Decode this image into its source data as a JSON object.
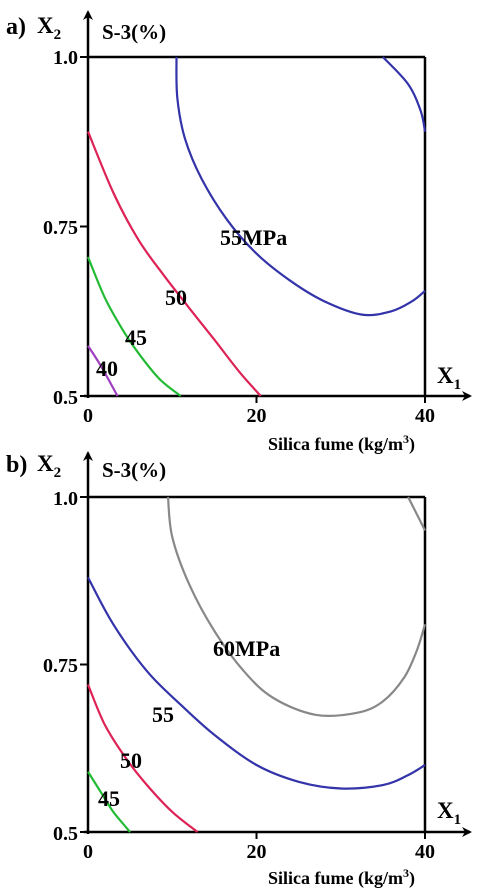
{
  "chart_data": [
    {
      "type": "contour",
      "panel_label": "a)",
      "title": "S-3(%)",
      "y_axis": {
        "name": "X",
        "subscript": "2",
        "ticks": [
          "0.5",
          "0.75",
          "1.0"
        ],
        "range": [
          0.5,
          1.0
        ]
      },
      "x_axis": {
        "name": "X",
        "subscript": "1",
        "ticks": [
          "0",
          "20",
          "40"
        ],
        "range": [
          0,
          40
        ],
        "label": "Silica fume (kg/m",
        "label_sup": "3",
        "label_end": ")"
      },
      "contours": [
        {
          "label": "40",
          "color": "#a040c0",
          "points": [
            [
              0,
              0.574
            ],
            [
              1.5,
              0.545
            ],
            [
              3.5,
              0.5
            ]
          ]
        },
        {
          "label": "45",
          "color": "#22bb33",
          "points": [
            [
              0,
              0.705
            ],
            [
              2,
              0.645
            ],
            [
              4,
              0.6
            ],
            [
              6,
              0.563
            ],
            [
              8.5,
              0.525
            ],
            [
              11,
              0.5
            ]
          ]
        },
        {
          "label": "50",
          "color": "#dd2255",
          "points": [
            [
              0,
              0.89
            ],
            [
              3,
              0.8
            ],
            [
              6,
              0.73
            ],
            [
              9,
              0.678
            ],
            [
              12,
              0.63
            ],
            [
              15,
              0.583
            ],
            [
              18,
              0.535
            ],
            [
              20.5,
              0.5
            ]
          ]
        },
        {
          "label": "55MPa",
          "color": "#3333aa",
          "points": [
            [
              10.5,
              1.0
            ],
            [
              10.6,
              0.94
            ],
            [
              11.5,
              0.88
            ],
            [
              13.5,
              0.82
            ],
            [
              16.5,
              0.76
            ],
            [
              20,
              0.71
            ],
            [
              24,
              0.67
            ],
            [
              28,
              0.64
            ],
            [
              32.5,
              0.62
            ],
            [
              36,
              0.625
            ],
            [
              38.5,
              0.64
            ],
            [
              40,
              0.655
            ]
          ]
        },
        {
          "label": "",
          "color": "#3333aa",
          "points": [
            [
              35,
              1.0
            ],
            [
              38,
              0.96
            ],
            [
              39.5,
              0.92
            ],
            [
              40,
              0.89
            ]
          ]
        }
      ]
    },
    {
      "type": "contour",
      "panel_label": "b)",
      "title": "S-3(%)",
      "y_axis": {
        "name": "X",
        "subscript": "2",
        "ticks": [
          "0.5",
          "0.75",
          "1.0"
        ],
        "range": [
          0.5,
          1.0
        ]
      },
      "x_axis": {
        "name": "X",
        "subscript": "1",
        "ticks": [
          "0",
          "20",
          "40"
        ],
        "range": [
          0,
          40
        ],
        "label": "Silica fume (kg/m",
        "label_sup": "3",
        "label_end": ")"
      },
      "contours": [
        {
          "label": "45",
          "color": "#22bb33",
          "points": [
            [
              0,
              0.59
            ],
            [
              1.5,
              0.56
            ],
            [
              3,
              0.53
            ],
            [
              5,
              0.5
            ]
          ]
        },
        {
          "label": "50",
          "color": "#dd2255",
          "points": [
            [
              0,
              0.72
            ],
            [
              2,
              0.66
            ],
            [
              4.5,
              0.61
            ],
            [
              7,
              0.57
            ],
            [
              10,
              0.53
            ],
            [
              13,
              0.5
            ]
          ]
        },
        {
          "label": "55",
          "color": "#3333aa",
          "points": [
            [
              0,
              0.88
            ],
            [
              3,
              0.81
            ],
            [
              7,
              0.74
            ],
            [
              11,
              0.69
            ],
            [
              15,
              0.645
            ],
            [
              20,
              0.6
            ],
            [
              25,
              0.575
            ],
            [
              30,
              0.565
            ],
            [
              35,
              0.57
            ],
            [
              38,
              0.585
            ],
            [
              40,
              0.6
            ]
          ]
        },
        {
          "label": "60MPa",
          "color": "#888888",
          "points": [
            [
              9.5,
              1.0
            ],
            [
              10,
              0.94
            ],
            [
              12,
              0.87
            ],
            [
              15,
              0.8
            ],
            [
              18.5,
              0.74
            ],
            [
              22,
              0.7
            ],
            [
              27,
              0.675
            ],
            [
              32,
              0.678
            ],
            [
              35,
              0.695
            ],
            [
              37.5,
              0.73
            ],
            [
              39,
              0.77
            ],
            [
              40,
              0.81
            ]
          ]
        },
        {
          "label": "",
          "color": "#888888",
          "points": [
            [
              38,
              1.0
            ],
            [
              39.2,
              0.97
            ],
            [
              40,
              0.95
            ]
          ]
        }
      ]
    }
  ]
}
